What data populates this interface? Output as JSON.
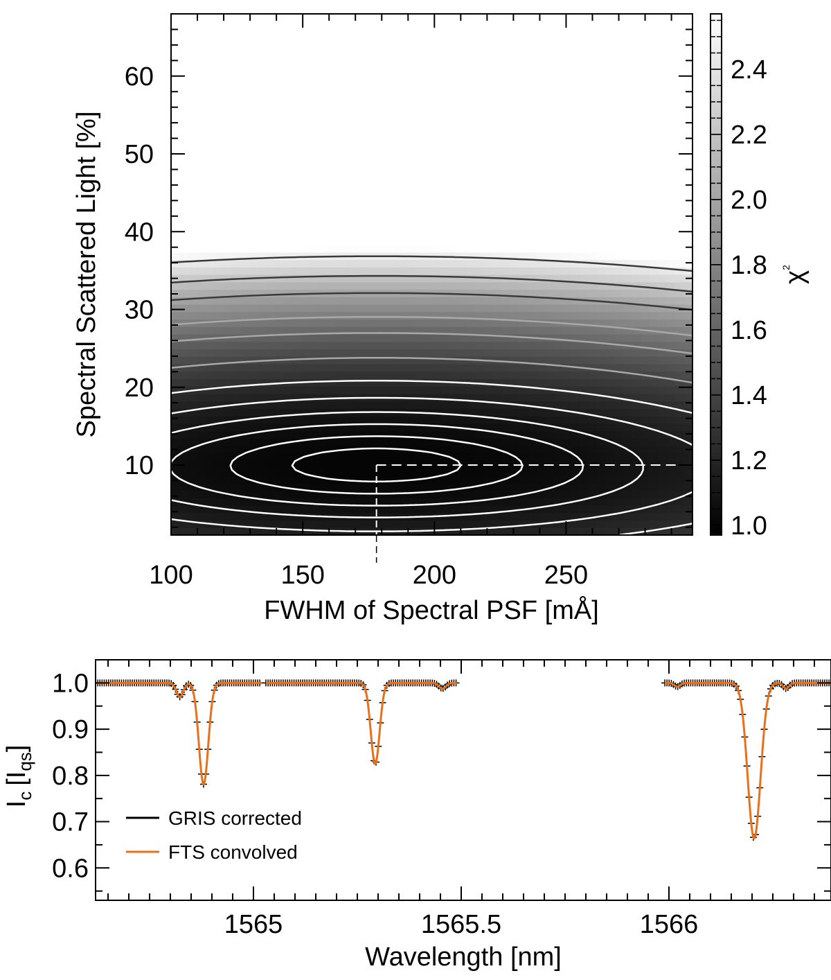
{
  "chart_data": [
    {
      "type": "heatmap",
      "title": "",
      "xlabel": "FWHM of Spectral PSF [mÅ]",
      "ylabel": "Spectral Scattered Light [%]",
      "xlim": [
        100,
        298
      ],
      "ylim": [
        1,
        68
      ],
      "xticks": [
        100,
        150,
        200,
        250
      ],
      "xtick_labels": [
        "100",
        "150",
        "200",
        "250"
      ],
      "yticks": [
        10,
        20,
        30,
        40,
        50,
        60
      ],
      "ytick_labels": [
        "10",
        "20",
        "30",
        "40",
        "50",
        "60"
      ],
      "colorbar": {
        "label_main": "χ",
        "label_sup": "2",
        "range": [
          0.97,
          2.57
        ],
        "ticks": [
          1.0,
          1.2,
          1.4,
          1.6,
          1.8,
          2.0,
          2.2,
          2.4
        ],
        "tick_labels": [
          "1.0",
          "1.2",
          "1.4",
          "1.6",
          "1.8",
          "2.0",
          "2.2",
          "2.4"
        ]
      },
      "minimum": {
        "fwhm": 178,
        "scattered_light": 10
      },
      "contour_levels": [
        1.01,
        1.03,
        1.06,
        1.1,
        1.16,
        1.25,
        1.4,
        1.6,
        1.75,
        2.0,
        2.2,
        2.45
      ],
      "colors": {
        "low_contour": "#ffffff",
        "mid_contour": "#a8a8a8",
        "high_contour": "#3a3a3a",
        "marker": "#ffffff"
      }
    },
    {
      "type": "line",
      "title": "",
      "xlabel": "Wavelength [nm]",
      "ylabel_main": "I",
      "ylabel_sub": "c",
      "ylabel_unit_open": "[I",
      "ylabel_unit_sub": "qs",
      "ylabel_unit_close": "]",
      "xlim": [
        1564.62,
        1566.39
      ],
      "ylim": [
        0.53,
        1.05
      ],
      "xticks": [
        1565,
        1565.5,
        1566
      ],
      "xtick_labels": [
        "1565",
        "1565.5",
        "1566"
      ],
      "yticks": [
        0.6,
        0.7,
        0.8,
        0.9,
        1.0
      ],
      "ytick_labels": [
        "0.6",
        "0.7",
        "0.8",
        "0.9",
        "1.0"
      ],
      "segments": [
        [
          1564.62,
          1565.02
        ],
        [
          1565.03,
          1565.49
        ],
        [
          1565.99,
          1566.39
        ]
      ],
      "continuum": 1.0,
      "lines": [
        {
          "center": 1564.823,
          "depth": 0.03,
          "width": 0.012
        },
        {
          "center": 1564.88,
          "depth": 0.219,
          "width": 0.016
        },
        {
          "center": 1565.293,
          "depth": 0.175,
          "width": 0.015
        },
        {
          "center": 1565.455,
          "depth": 0.012,
          "width": 0.012
        },
        {
          "center": 1566.205,
          "depth": 0.336,
          "width": 0.022
        },
        {
          "center": 1566.282,
          "depth": 0.012,
          "width": 0.01
        },
        {
          "center": 1566.02,
          "depth": 0.008,
          "width": 0.01
        }
      ],
      "series": [
        {
          "name": "GRIS corrected",
          "color": "#000000",
          "style": "plus-markers"
        },
        {
          "name": "FTS convolved",
          "color": "#e8701a",
          "style": "line"
        }
      ],
      "legend_position": "lower-left"
    }
  ]
}
